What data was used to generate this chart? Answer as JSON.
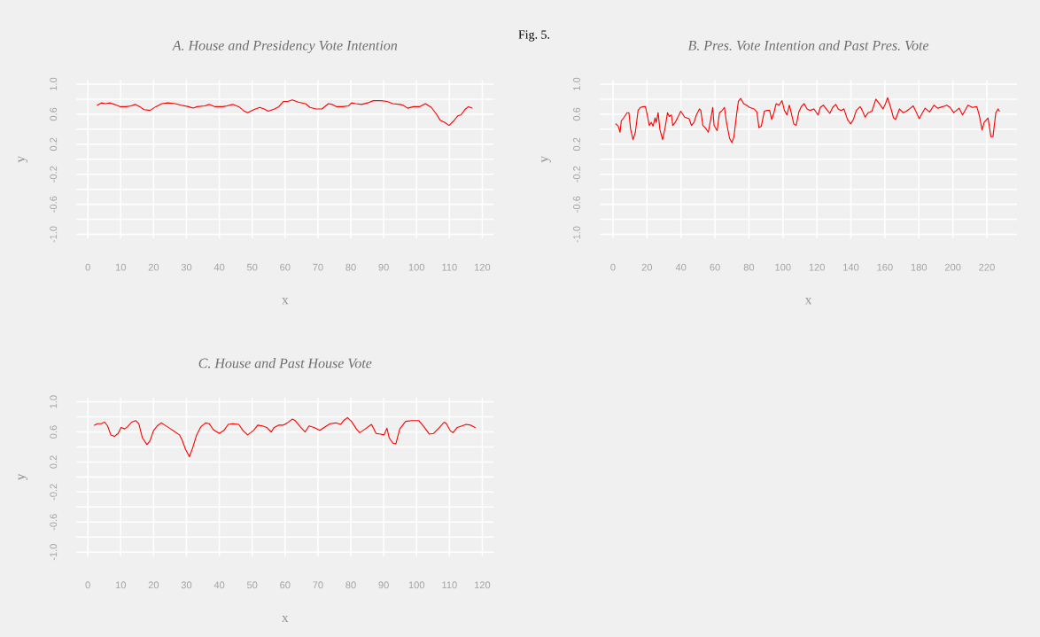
{
  "chart_data": [
    {
      "type": "line",
      "title": "A. House and Presidency Vote Intention",
      "xlabel": "x",
      "ylabel": "y",
      "annotations": [
        "Fig. 5."
      ],
      "xlim": [
        -3.6,
        123.6
      ],
      "ylim": [
        -1.06,
        1.06
      ],
      "xticks": [
        0,
        10,
        20,
        30,
        40,
        50,
        60,
        70,
        80,
        90,
        100,
        110,
        120
      ],
      "yticks": [
        {
          "value": -1.0,
          "label": "-1.0"
        },
        {
          "value": -0.8,
          "label": null
        },
        {
          "value": -0.6,
          "label": "-0.6"
        },
        {
          "value": -0.4,
          "label": null
        },
        {
          "value": -0.2,
          "label": "-0.2"
        },
        {
          "value": 0,
          "label": null
        },
        {
          "value": 0.2,
          "label": "0.2"
        },
        {
          "value": 0.4,
          "label": null
        },
        {
          "value": 0.6,
          "label": "0.6"
        },
        {
          "value": 0.8,
          "label": null
        },
        {
          "value": 1.0,
          "label": "1.0"
        }
      ],
      "grid": true,
      "series": [
        {
          "color": "#ff0000",
          "x": [
            2.9,
            4.1,
            5.4,
            6.8,
            8.1,
            9.9,
            11.7,
            13.1,
            14.4,
            15.8,
            17.1,
            18.9,
            20.7,
            22.5,
            24.3,
            26.6,
            28.4,
            30.6,
            32.0,
            33.3,
            35.6,
            36.9,
            38.7,
            41.0,
            42.3,
            44.1,
            45.9,
            47.3,
            48.6,
            50.5,
            52.3,
            53.6,
            54.9,
            56.8,
            58.1,
            59.5,
            60.8,
            62.2,
            64.0,
            66.2,
            67.6,
            69.4,
            71.2,
            73.2,
            74.3,
            75.7,
            77.5,
            79.3,
            80.2,
            81.5,
            83.3,
            85.1,
            86.9,
            89.2,
            91.0,
            92.8,
            95.0,
            95.9,
            97.3,
            99.1,
            100.9,
            102.7,
            104.5,
            105.9,
            107.2,
            108.6,
            109.9,
            111.3,
            112.6,
            113.5,
            114.9,
            115.8,
            116.9
          ],
          "values": [
            0.72,
            0.75,
            0.74,
            0.75,
            0.73,
            0.7,
            0.7,
            0.71,
            0.73,
            0.7,
            0.66,
            0.65,
            0.7,
            0.74,
            0.75,
            0.74,
            0.72,
            0.7,
            0.68,
            0.7,
            0.71,
            0.73,
            0.7,
            0.7,
            0.71,
            0.73,
            0.7,
            0.65,
            0.62,
            0.66,
            0.69,
            0.67,
            0.64,
            0.67,
            0.7,
            0.77,
            0.77,
            0.79,
            0.76,
            0.74,
            0.69,
            0.67,
            0.67,
            0.74,
            0.73,
            0.7,
            0.7,
            0.71,
            0.75,
            0.74,
            0.73,
            0.75,
            0.78,
            0.78,
            0.77,
            0.74,
            0.73,
            0.72,
            0.68,
            0.7,
            0.7,
            0.74,
            0.69,
            0.61,
            0.52,
            0.49,
            0.45,
            0.51,
            0.58,
            0.59,
            0.67,
            0.7,
            0.68
          ]
        }
      ]
    },
    {
      "type": "line",
      "title": "B. Pres. Vote Intention and Past Pres. Vote",
      "xlabel": "x",
      "ylabel": "y",
      "xlim": [
        -8,
        238
      ],
      "ylim": [
        -1.06,
        1.06
      ],
      "xticks": [
        0,
        20,
        40,
        60,
        80,
        100,
        120,
        140,
        160,
        180,
        200,
        220
      ],
      "yticks": [
        {
          "value": -1.0,
          "label": "-1.0"
        },
        {
          "value": -0.8,
          "label": null
        },
        {
          "value": -0.6,
          "label": "-0.6"
        },
        {
          "value": -0.4,
          "label": null
        },
        {
          "value": -0.2,
          "label": "-0.2"
        },
        {
          "value": 0,
          "label": null
        },
        {
          "value": 0.2,
          "label": "0.2"
        },
        {
          "value": 0.4,
          "label": null
        },
        {
          "value": 0.6,
          "label": "0.6"
        },
        {
          "value": 0.8,
          "label": null
        },
        {
          "value": 1.0,
          "label": "1.0"
        }
      ],
      "grid": true,
      "series": [
        {
          "color": "#ff0000",
          "x": [
            1.7,
            3.1,
            4.2,
            4.9,
            6.6,
            8.3,
            9.4,
            10.4,
            11.8,
            13.2,
            14.8,
            16.1,
            17.9,
            19.1,
            20.0,
            21.4,
            22.6,
            23.6,
            24.8,
            25.5,
            26.6,
            27.6,
            29.2,
            30.7,
            32.1,
            33.1,
            34.4,
            35.2,
            36.6,
            38.0,
            39.9,
            42.2,
            44.8,
            46.2,
            47.7,
            49.1,
            50.9,
            51.7,
            52.9,
            54.3,
            56.1,
            57.5,
            58.7,
            59.5,
            61.3,
            62.7,
            63.9,
            65.6,
            66.8,
            68.6,
            70.0,
            71.2,
            72.6,
            73.8,
            75.2,
            76.9,
            78.6,
            80.4,
            83.0,
            84.7,
            85.9,
            87.3,
            89.1,
            90.8,
            92.2,
            93.4,
            94.6,
            96.0,
            97.7,
            99.5,
            100.9,
            102.4,
            103.8,
            105.0,
            106.4,
            107.8,
            109.4,
            110.8,
            112.5,
            114.2,
            116.0,
            118.2,
            120.7,
            122.0,
            123.8,
            125.5,
            127.6,
            129.3,
            131.1,
            132.5,
            134.2,
            135.9,
            138.0,
            139.9,
            141.5,
            143.2,
            145.5,
            146.7,
            148.4,
            150.2,
            152.4,
            154.7,
            156.4,
            158.9,
            160.2,
            161.6,
            163.4,
            165.1,
            166.3,
            168.6,
            170.7,
            172.7,
            175.0,
            176.7,
            178.0,
            180.2,
            181.9,
            183.7,
            186.3,
            188.9,
            191.1,
            194.1,
            196.4,
            198.4,
            200.5,
            203.7,
            205.7,
            208.9,
            211.5,
            214.1,
            215.5,
            217.2,
            218.4,
            220.7,
            222.4,
            223.6,
            225.3,
            226.6,
            227.4
          ],
          "values": [
            0.47,
            0.44,
            0.36,
            0.51,
            0.56,
            0.62,
            0.62,
            0.4,
            0.26,
            0.36,
            0.65,
            0.69,
            0.7,
            0.7,
            0.61,
            0.45,
            0.49,
            0.44,
            0.55,
            0.49,
            0.62,
            0.4,
            0.26,
            0.42,
            0.62,
            0.57,
            0.59,
            0.45,
            0.49,
            0.55,
            0.64,
            0.56,
            0.54,
            0.45,
            0.49,
            0.59,
            0.67,
            0.65,
            0.45,
            0.42,
            0.36,
            0.53,
            0.69,
            0.45,
            0.38,
            0.62,
            0.64,
            0.69,
            0.49,
            0.28,
            0.22,
            0.3,
            0.57,
            0.77,
            0.81,
            0.74,
            0.72,
            0.69,
            0.67,
            0.63,
            0.42,
            0.44,
            0.64,
            0.65,
            0.65,
            0.53,
            0.61,
            0.74,
            0.72,
            0.78,
            0.65,
            0.59,
            0.72,
            0.61,
            0.47,
            0.45,
            0.63,
            0.7,
            0.74,
            0.67,
            0.65,
            0.67,
            0.59,
            0.69,
            0.72,
            0.67,
            0.61,
            0.69,
            0.73,
            0.67,
            0.65,
            0.67,
            0.53,
            0.47,
            0.53,
            0.65,
            0.7,
            0.65,
            0.56,
            0.62,
            0.64,
            0.8,
            0.75,
            0.67,
            0.73,
            0.82,
            0.69,
            0.55,
            0.53,
            0.67,
            0.62,
            0.64,
            0.68,
            0.71,
            0.65,
            0.54,
            0.61,
            0.68,
            0.63,
            0.72,
            0.68,
            0.7,
            0.72,
            0.69,
            0.62,
            0.68,
            0.59,
            0.72,
            0.69,
            0.7,
            0.59,
            0.39,
            0.49,
            0.55,
            0.3,
            0.3,
            0.62,
            0.67,
            0.64
          ]
        }
      ]
    },
    {
      "type": "line",
      "title": "C. House and Past House Vote",
      "xlabel": "x",
      "ylabel": "y",
      "xlim": [
        -3.6,
        123.6
      ],
      "ylim": [
        -1.06,
        1.06
      ],
      "xticks": [
        0,
        10,
        20,
        30,
        40,
        50,
        60,
        70,
        80,
        90,
        100,
        110,
        120
      ],
      "yticks": [
        {
          "value": -1.0,
          "label": "-1.0"
        },
        {
          "value": -0.8,
          "label": null
        },
        {
          "value": -0.6,
          "label": "-0.6"
        },
        {
          "value": -0.4,
          "label": null
        },
        {
          "value": -0.2,
          "label": "-0.2"
        },
        {
          "value": 0,
          "label": null
        },
        {
          "value": 0.2,
          "label": "0.2"
        },
        {
          "value": 0.4,
          "label": null
        },
        {
          "value": 0.6,
          "label": "0.6"
        },
        {
          "value": 0.8,
          "label": null
        },
        {
          "value": 1.0,
          "label": "1.0"
        }
      ],
      "grid": true,
      "series": [
        {
          "color": "#ff0000",
          "x": [
            2.0,
            2.9,
            4.0,
            5.1,
            6.0,
            7.0,
            8.1,
            9.2,
            10.1,
            11.2,
            12.1,
            13.3,
            14.6,
            15.5,
            16.6,
            18.0,
            18.9,
            20.0,
            21.1,
            22.3,
            23.4,
            25.2,
            26.5,
            27.9,
            28.6,
            29.7,
            30.9,
            31.9,
            33.1,
            34.4,
            35.8,
            36.9,
            38.2,
            40.0,
            41.4,
            42.7,
            44.1,
            45.9,
            47.2,
            48.6,
            50.4,
            51.7,
            53.1,
            54.4,
            55.8,
            56.7,
            58.0,
            59.4,
            60.7,
            62.2,
            63.1,
            64.6,
            66.1,
            67.3,
            68.8,
            70.6,
            71.9,
            73.7,
            75.5,
            76.9,
            77.8,
            79.0,
            80.2,
            81.7,
            82.7,
            84.4,
            86.3,
            87.7,
            89.0,
            90.1,
            91.0,
            91.7,
            92.8,
            93.7,
            94.9,
            96.7,
            98.5,
            100.7,
            102.4,
            103.9,
            105.2,
            107.0,
            108.4,
            109.1,
            110.2,
            111.1,
            112.4,
            113.8,
            115.1,
            116.5,
            117.8
          ],
          "values": [
            0.69,
            0.71,
            0.71,
            0.73,
            0.68,
            0.56,
            0.54,
            0.58,
            0.66,
            0.64,
            0.67,
            0.73,
            0.75,
            0.71,
            0.52,
            0.43,
            0.48,
            0.62,
            0.68,
            0.72,
            0.69,
            0.64,
            0.6,
            0.56,
            0.5,
            0.37,
            0.27,
            0.39,
            0.56,
            0.67,
            0.72,
            0.71,
            0.63,
            0.58,
            0.62,
            0.7,
            0.71,
            0.7,
            0.62,
            0.56,
            0.62,
            0.69,
            0.68,
            0.66,
            0.6,
            0.66,
            0.69,
            0.69,
            0.72,
            0.77,
            0.75,
            0.67,
            0.6,
            0.68,
            0.66,
            0.62,
            0.66,
            0.71,
            0.72,
            0.7,
            0.75,
            0.79,
            0.74,
            0.64,
            0.59,
            0.64,
            0.7,
            0.58,
            0.57,
            0.56,
            0.65,
            0.52,
            0.45,
            0.44,
            0.64,
            0.74,
            0.75,
            0.75,
            0.66,
            0.57,
            0.58,
            0.66,
            0.73,
            0.71,
            0.62,
            0.59,
            0.66,
            0.68,
            0.7,
            0.69,
            0.66
          ]
        }
      ]
    }
  ]
}
